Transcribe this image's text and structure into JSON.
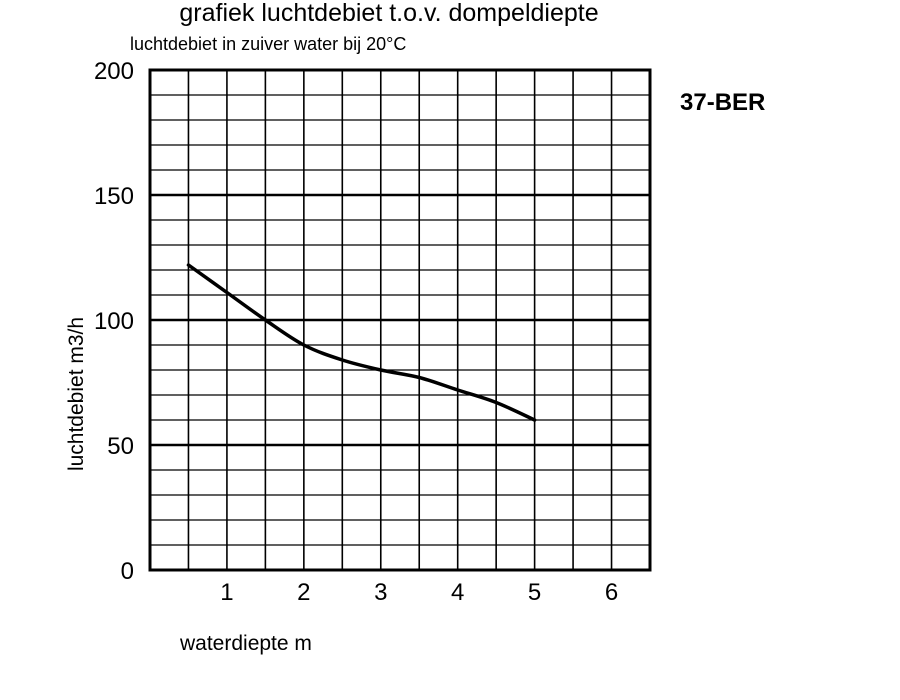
{
  "chart_data": {
    "type": "line",
    "title": "grafiek luchtdebiet t.o.v. dompeldiepte",
    "subtitle": "luchtdebiet in zuiver water bij 20°C",
    "xlabel": "waterdiepte m",
    "ylabel": "luchtdebiet m3/h",
    "model_label": "37-BER",
    "xlim": [
      0,
      6.5
    ],
    "ylim": [
      0,
      200
    ],
    "x_ticks": [
      "1",
      "2",
      "3",
      "4",
      "5",
      "6"
    ],
    "y_ticks": [
      "0",
      "50",
      "100",
      "150",
      "200"
    ],
    "x_tick_values": [
      1,
      2,
      3,
      4,
      5,
      6
    ],
    "y_tick_values": [
      0,
      50,
      100,
      150,
      200
    ],
    "grid": true,
    "x_grid_step": 0.5,
    "y_grid_step": 10,
    "series": [
      {
        "x": [
          0.5,
          1.0,
          1.5,
          2.0,
          2.5,
          3.0,
          3.5,
          4.0,
          4.5,
          5.0
        ],
        "y": [
          122,
          111,
          100,
          90,
          84,
          80,
          77,
          72,
          67,
          60
        ]
      }
    ],
    "line_color": "#000000"
  }
}
